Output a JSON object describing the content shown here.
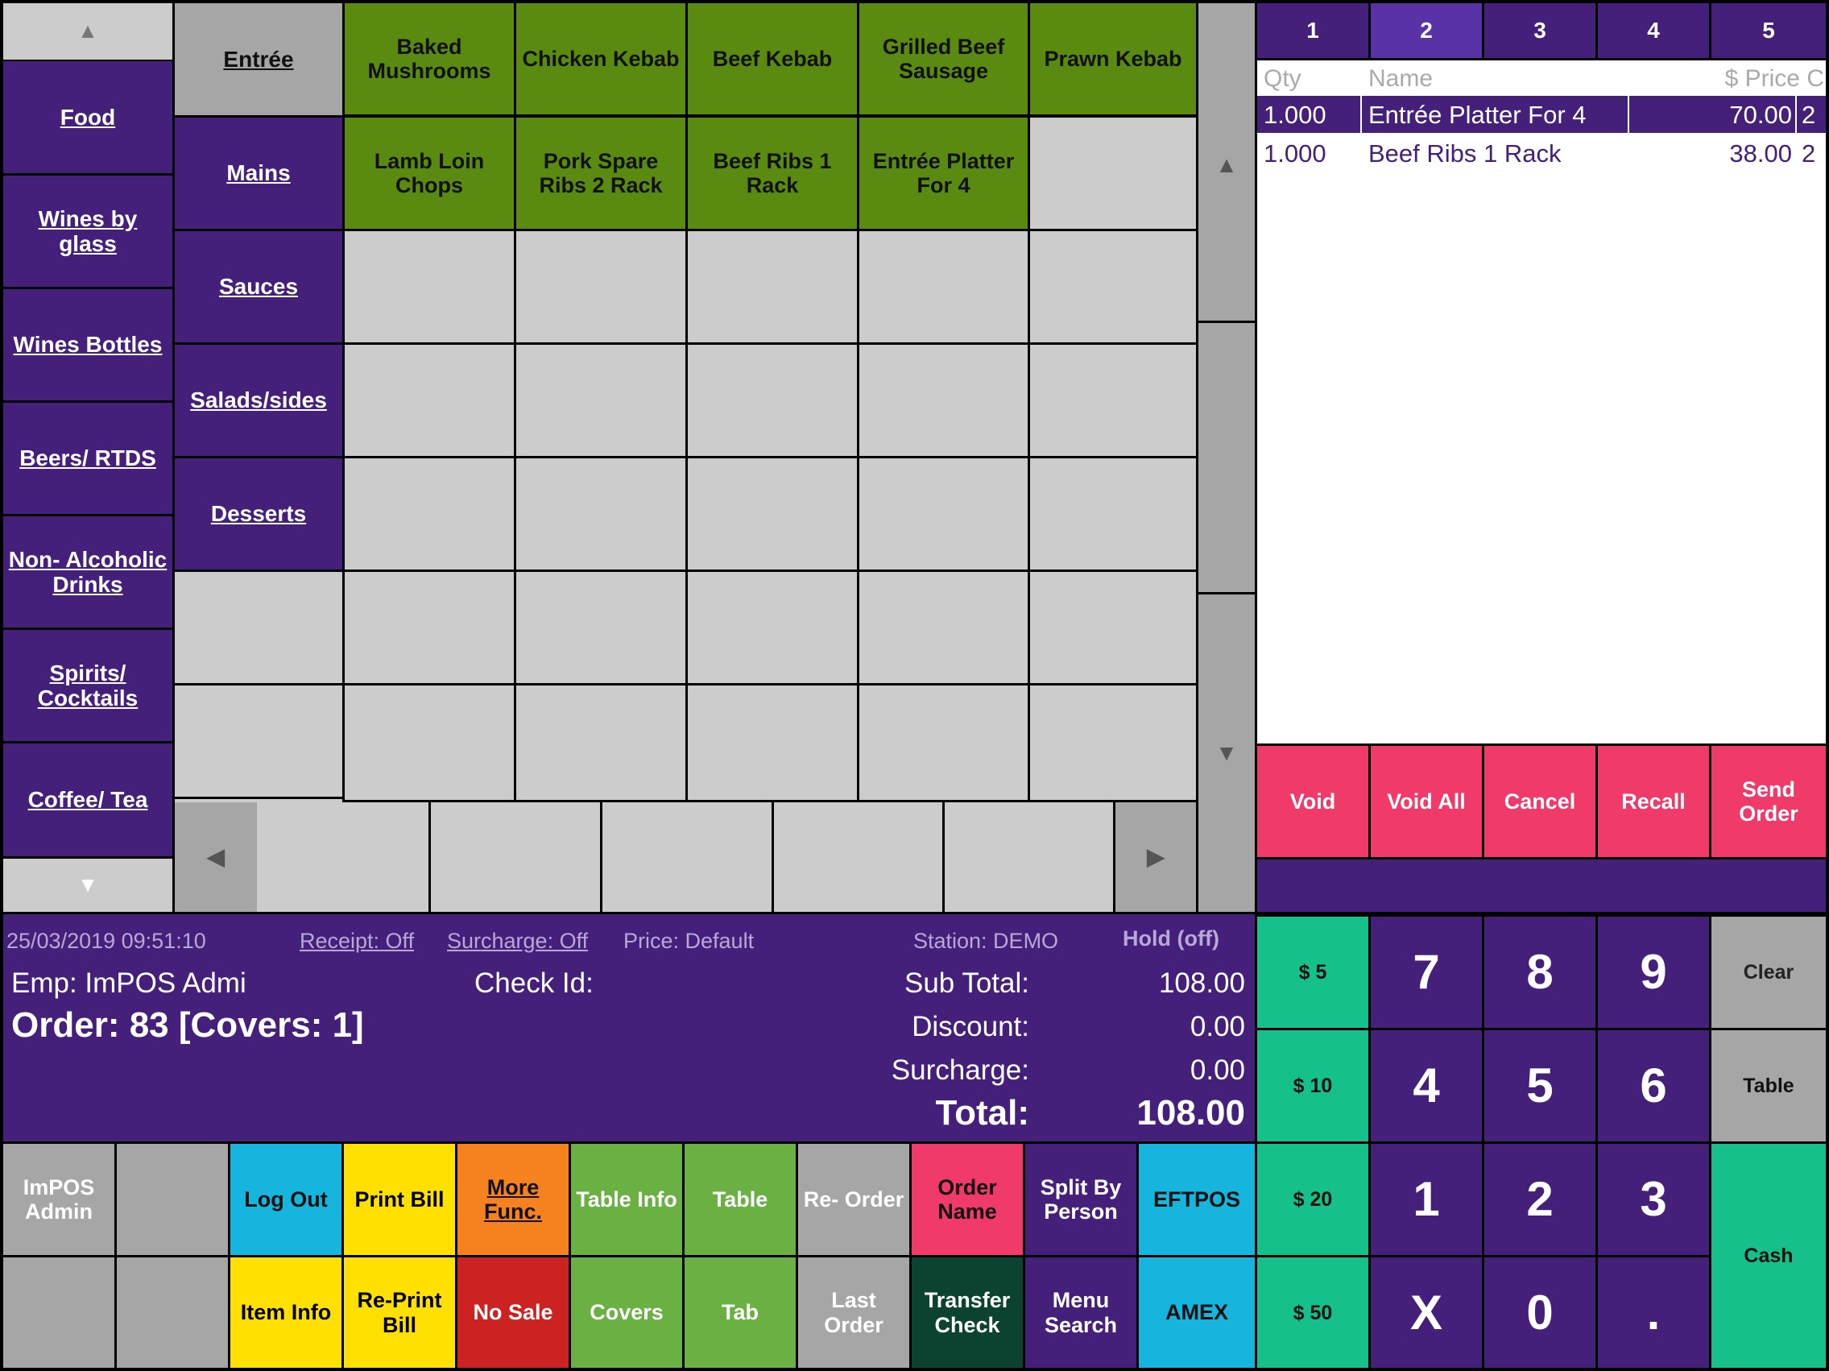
{
  "categories_left": [
    "Food",
    "Wines by glass",
    "Wines Bottles",
    "Beers/ RTDS",
    "Non- Alcoholic Drinks",
    "Spirits/ Cocktails",
    "Coffee/ Tea"
  ],
  "subcategories": [
    "Entrée",
    "Mains",
    "Sauces",
    "Salads/sides",
    "Desserts"
  ],
  "items_row1": [
    "Baked Mushrooms",
    "Chicken Kebab",
    "Beef Kebab",
    "Grilled Beef Sausage",
    "Prawn Kebab"
  ],
  "items_row2": [
    "Lamb Loin Chops",
    "Pork Spare Ribs 2 Rack",
    "Beef Ribs 1 Rack",
    "Entrée Platter For 4"
  ],
  "seat_tabs": [
    "1",
    "2",
    "3",
    "4",
    "5"
  ],
  "active_seat": 2,
  "order_header": {
    "qty": "Qty",
    "name": "Name",
    "price": "$ Price C"
  },
  "order_lines": [
    {
      "qty": "1.000",
      "name": "Entrée Platter For 4",
      "price": "70.00",
      "c": "2",
      "selected": true
    },
    {
      "qty": "1.000",
      "name": "Beef Ribs 1 Rack",
      "price": "38.00",
      "c": "2",
      "selected": false
    }
  ],
  "order_actions": [
    "Void",
    "Void All",
    "Cancel",
    "Recall",
    "Send Order"
  ],
  "status": {
    "datetime": "25/03/2019 09:51:10",
    "receipt": "Receipt: Off",
    "surcharge_toggle": "Surcharge: Off",
    "price": "Price: Default",
    "station": "Station: DEMO",
    "hold": "Hold (off)",
    "emp": "Emp:  ImPOS Admi",
    "check": "Check Id:",
    "order": "Order: 83 [Covers:  1]",
    "subtotal_label": "Sub Total:",
    "subtotal": "108.00",
    "discount_label": "Discount:",
    "discount": "0.00",
    "surcharge_label": "Surcharge:",
    "surcharge": "0.00",
    "total_label": "Total:",
    "total": "108.00"
  },
  "func_row1": [
    "ImPOS Admin",
    "",
    "Log Out",
    "Print Bill",
    "More Func.",
    "Table Info",
    "Table",
    "Re- Order",
    "Order Name",
    "Split By Person",
    "EFTPOS"
  ],
  "func_row2": [
    "",
    "",
    "Item Info",
    "Re-Print Bill",
    "No Sale",
    "Covers",
    "Tab",
    "Last Order",
    "Transfer Check",
    "Menu Search",
    "AMEX"
  ],
  "cash_amounts": [
    "$ 5",
    "$ 10",
    "$ 20",
    "$ 50"
  ],
  "keypad": [
    "7",
    "8",
    "9",
    "4",
    "5",
    "6",
    "1",
    "2",
    "3",
    "X",
    "0",
    "."
  ],
  "side_keys": [
    "Clear",
    "Table",
    "Cash"
  ],
  "arrows": {
    "up": "▲",
    "down": "▼",
    "left": "◀",
    "right": "▶"
  }
}
